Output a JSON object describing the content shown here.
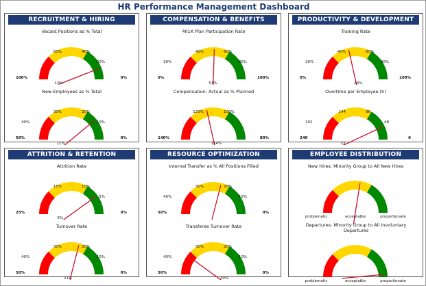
{
  "dashboard": {
    "title": "HR Performance Management Dashboard"
  },
  "colors": {
    "red": "#ff0000",
    "yellow": "#ffd700",
    "green": "#008800",
    "needle": "#c8102e",
    "header": "#1f3b73"
  },
  "panels": [
    {
      "title": "RECRUITMENT & HIRING",
      "gauges": [
        {
          "title": "Vacant Positions as % Total",
          "left_label": "100%",
          "ll_left": "",
          "ul_left": "60%",
          "ul_right": "40%",
          "lr_right": "20%",
          "right_label": "0%",
          "value_label": "12%",
          "value_fraction": 0.88
        },
        {
          "title": "New Employees as % Total",
          "left_label": "50%",
          "ll_left": "40%",
          "ul_left": "30%",
          "ul_right": "20%",
          "lr_right": "10%",
          "right_label": "0%",
          "value_label": "11%",
          "value_fraction": 0.78
        }
      ]
    },
    {
      "title": "COMPENSATION & BENEFITS",
      "gauges": [
        {
          "title": "401K Plan Participation Rate",
          "left_label": "0%",
          "ll_left": "20%",
          "ul_left": "40%",
          "ul_right": "60%",
          "lr_right": "80%",
          "right_label": "100%",
          "value_label": "51%",
          "value_fraction": 0.51
        },
        {
          "title": "Compensation: Actual as % Planned",
          "left_label": "140%",
          "ll_left": "",
          "ul_left": "120%",
          "ul_right": "100%",
          "lr_right": "",
          "right_label": "80%",
          "value_label": "114%",
          "value_fraction": 0.43
        }
      ]
    },
    {
      "title": "PRODUCTIVITY & DEVELOPMENT",
      "gauges": [
        {
          "title": "Training Rate",
          "left_label": "0%",
          "ll_left": "20%",
          "ul_left": "40%",
          "ul_right": "60%",
          "lr_right": "80%",
          "right_label": "100%",
          "value_label": "43%",
          "value_fraction": 0.43
        },
        {
          "title": "Overtime per Employee (h)",
          "left_label": "240",
          "ll_left": "192",
          "ul_left": "144",
          "ul_right": "96",
          "lr_right": "48",
          "right_label": "0",
          "value_label": "33",
          "value_fraction": 0.86
        }
      ]
    },
    {
      "title": "ATTRITION & RETENTION",
      "gauges": [
        {
          "title": "Attrition Rate",
          "left_label": "25%",
          "ll_left": "",
          "ul_left": "15%",
          "ul_right": "10%",
          "lr_right": "5%",
          "right_label": "0%",
          "value_label": "5%",
          "value_fraction": 0.8
        },
        {
          "title": "Turnover Rate",
          "left_label": "50%",
          "ll_left": "40%",
          "ul_left": "30%",
          "ul_right": "20%",
          "lr_right": "10%",
          "right_label": "0%",
          "value_label": "21%",
          "value_fraction": 0.58
        }
      ]
    },
    {
      "title": "RESOURCE OPTIMIZATION",
      "gauges": [
        {
          "title": "Internal Transfer as % All Positions Filled",
          "left_label": "50%",
          "ll_left": "40%",
          "ul_left": "30%",
          "ul_right": "20%",
          "lr_right": "10%",
          "right_label": "0%",
          "value_label": "",
          "value_fraction": 0.58
        },
        {
          "title": "Transferee Turnover Rate",
          "left_label": "50%",
          "ll_left": "40%",
          "ul_left": "30%",
          "ul_right": "20%",
          "lr_right": "10%",
          "right_label": "0%",
          "value_label": "40%",
          "value_fraction": 0.2
        }
      ]
    },
    {
      "title": "EMPLOYEE DISTRIBUTION",
      "gauges": [
        {
          "title": "New Hires: Minority Group to All New Hires",
          "left_label": "",
          "ll_left": "",
          "ul_left": "",
          "ul_right": "",
          "lr_right": "",
          "right_label": "",
          "value_label": "",
          "value_fraction": 0.55,
          "cat_left": "problematic",
          "cat_mid": "acceptable",
          "cat_right": "proportionate"
        },
        {
          "title": "Departures: Minority Group to All Involuntary Departures",
          "left_label": "",
          "ll_left": "",
          "ul_left": "",
          "ul_right": "",
          "lr_right": "",
          "right_label": "",
          "value_label": "",
          "value_fraction": 0.97,
          "cat_left": "problematic",
          "cat_mid": "acceptable",
          "cat_right": "proportionate"
        }
      ]
    }
  ]
}
